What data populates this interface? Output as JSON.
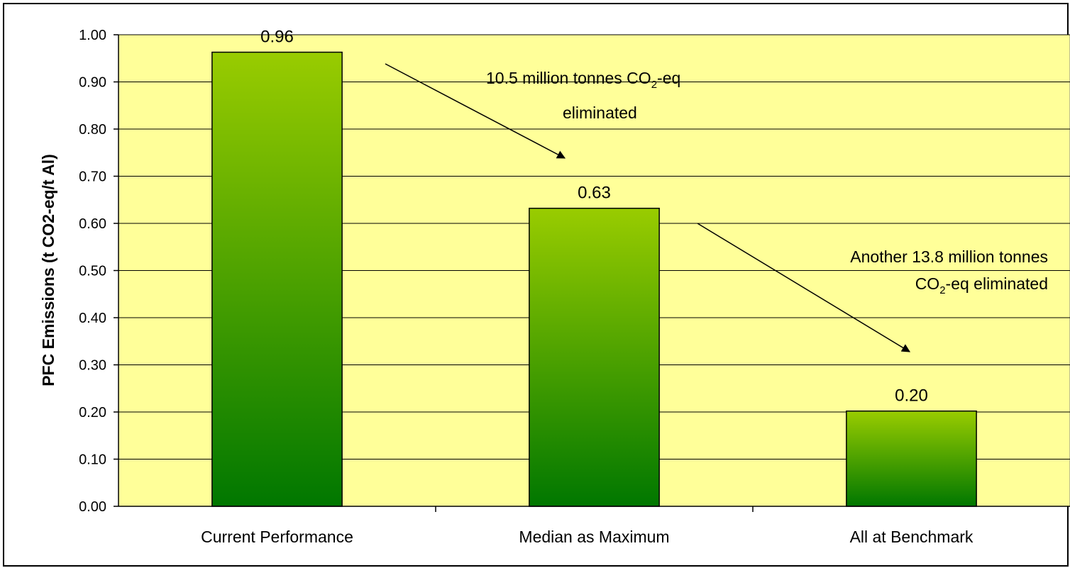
{
  "chart_data": {
    "type": "bar",
    "title": "",
    "xlabel": "",
    "ylabel": "PFC Emissions (t CO2-eq/t Al)",
    "categories": [
      "Current Performance",
      "Median as Maximum",
      "All at Benchmark"
    ],
    "values": [
      0.963,
      0.632,
      0.202
    ],
    "value_labels": [
      "0.96",
      "0.63",
      "0.20"
    ],
    "ylim": [
      0,
      1.0
    ],
    "yticks": [
      "0.00",
      "0.10",
      "0.20",
      "0.30",
      "0.40",
      "0.50",
      "0.60",
      "0.70",
      "0.80",
      "0.90",
      "1.00"
    ],
    "grid": true,
    "legend": "none",
    "annotations": [
      {
        "lines": [
          {
            "before": "10.5 million tonnes CO",
            "sub": "2",
            "after": "-eq"
          },
          {
            "before": "eliminated",
            "sub": "",
            "after": ""
          }
        ],
        "from_category": "Current Performance",
        "to_category": "Median as Maximum"
      },
      {
        "lines": [
          {
            "before": "Another 13.8 million tonnes",
            "sub": "",
            "after": ""
          },
          {
            "before": "CO",
            "sub": "2",
            "after": "-eq eliminated"
          }
        ],
        "from_category": "Median as Maximum",
        "to_category": "All at Benchmark"
      }
    ],
    "colors": {
      "plot_background": "#ffff99",
      "bar_top": "#99cc00",
      "bar_bottom": "#007700",
      "gridline": "#000000"
    }
  }
}
